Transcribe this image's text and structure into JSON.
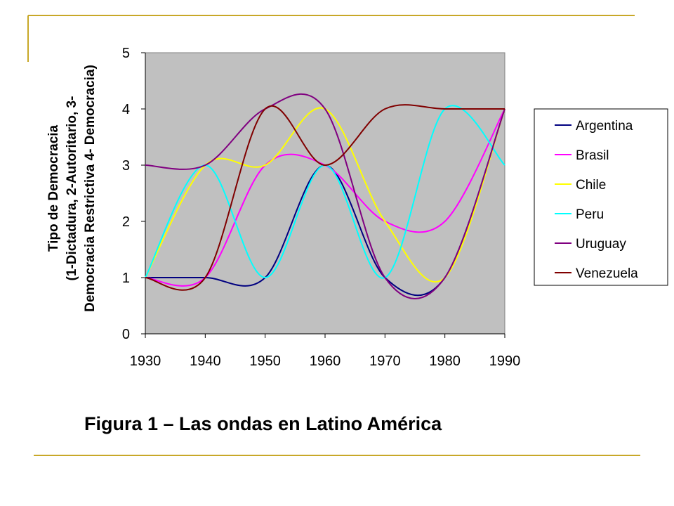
{
  "caption": "Figura 1 – Las ondas en Latino América",
  "colors": {
    "plot_bg": "#c0c0c0",
    "frame_gold": "#c8a828"
  },
  "chart_data": {
    "type": "line",
    "title": "",
    "xlabel": "",
    "ylabel_lines": [
      "Tipo de Democracia",
      "(1-Dictadura, 2-Autoritario, 3-",
      "Democracia Restrictiva 4- Democracia)"
    ],
    "x": [
      1930,
      1940,
      1950,
      1960,
      1970,
      1980,
      1990
    ],
    "x_ticks": [
      "1930",
      "1940",
      "1950",
      "1960",
      "1970",
      "1980",
      "1990"
    ],
    "y_ticks": [
      "0",
      "1",
      "2",
      "3",
      "4",
      "5"
    ],
    "xlim": [
      1930,
      1990
    ],
    "ylim": [
      0,
      5
    ],
    "grid": false,
    "legend_position": "right",
    "series": [
      {
        "name": "Argentina",
        "color": "#000080",
        "values": [
          1,
          1,
          1,
          3,
          1,
          1,
          4
        ]
      },
      {
        "name": "Brasil",
        "color": "#ff00ff",
        "values": [
          1,
          1,
          3,
          3,
          2,
          2,
          4
        ]
      },
      {
        "name": "Chile",
        "color": "#ffff00",
        "values": [
          1,
          3,
          3,
          4,
          2,
          1,
          4
        ]
      },
      {
        "name": "Peru",
        "color": "#00ffff",
        "values": [
          1,
          3,
          1,
          3,
          1,
          4,
          3
        ]
      },
      {
        "name": "Uruguay",
        "color": "#800080",
        "values": [
          3,
          3,
          4,
          4,
          1,
          1,
          4
        ]
      },
      {
        "name": "Venezuela",
        "color": "#800000",
        "values": [
          1,
          1,
          4,
          3,
          4,
          4,
          4
        ]
      }
    ]
  }
}
